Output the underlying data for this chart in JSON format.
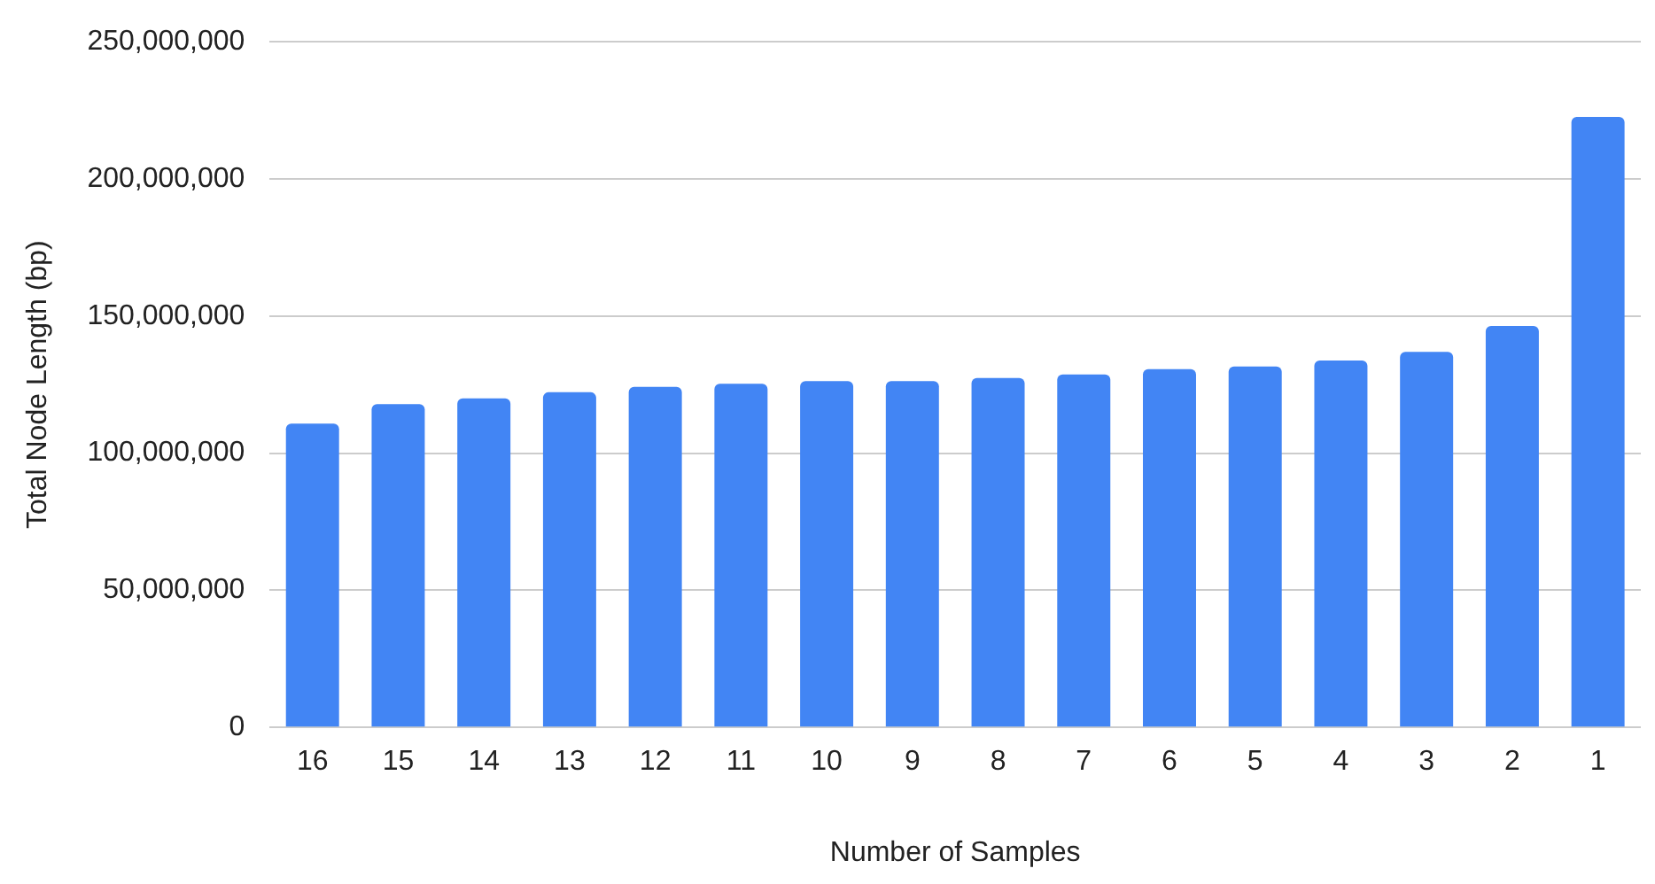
{
  "chart_data": {
    "type": "bar",
    "xlabel": "Number of Samples",
    "ylabel": "Total Node Length (bp)",
    "categories": [
      "16",
      "15",
      "14",
      "13",
      "12",
      "11",
      "10",
      "9",
      "8",
      "7",
      "6",
      "5",
      "4",
      "3",
      "2",
      "1"
    ],
    "values": [
      110800000,
      117900000,
      120000000,
      122200000,
      124200000,
      125300000,
      126300000,
      126300000,
      127400000,
      128700000,
      130600000,
      131600000,
      133800000,
      136900000,
      146400000,
      222600000
    ],
    "color": "#4285f4",
    "ylim": [
      0,
      250000000
    ],
    "yticks": [
      0,
      {
        "value": 50000000,
        "label": "50,000,000"
      },
      {
        "value": 100000000,
        "label": "100,000,000"
      },
      {
        "value": 150000000,
        "label": "150,000,000"
      },
      {
        "value": 200000000,
        "label": "200,000,000"
      },
      {
        "value": 250000000,
        "label": "250,000,000"
      }
    ],
    "grid": "y",
    "legend": false
  }
}
